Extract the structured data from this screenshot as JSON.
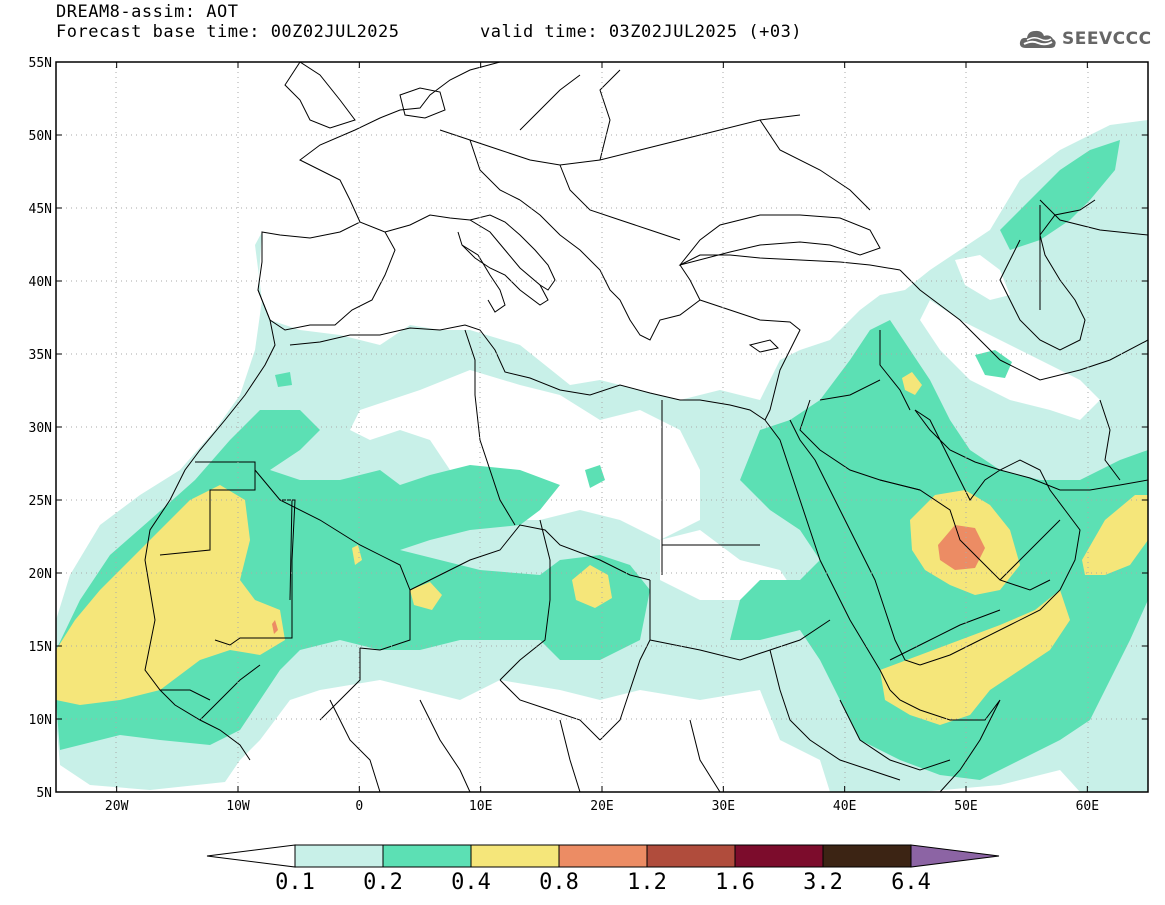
{
  "header": {
    "title": "DREAM8-assim: AOT",
    "base_time": "Forecast base time: 00Z02JUL2025",
    "valid_time": "valid time: 03Z02JUL2025 (+03)",
    "logo_text": "SEEVCCC"
  },
  "map": {
    "lon_range": [
      -25,
      65
    ],
    "lat_range": [
      5,
      55
    ],
    "lat_labels": [
      "55N",
      "50N",
      "45N",
      "40N",
      "35N",
      "30N",
      "25N",
      "20N",
      "15N",
      "10N",
      "5N"
    ],
    "lon_labels": [
      "20W",
      "10W",
      "0",
      "10E",
      "20E",
      "30E",
      "40E",
      "50E",
      "60E"
    ]
  },
  "colorbar": {
    "labels": [
      "0.1",
      "0.2",
      "0.4",
      "0.8",
      "1.2",
      "1.6",
      "3.2",
      "6.4"
    ],
    "colors": [
      "#c8f0e8",
      "#5ce0b4",
      "#f5e67a",
      "#ec8c64",
      "#b04c3c",
      "#7c0c2c",
      "#3c2414",
      "#8c64a4"
    ],
    "under_color": "#ffffff"
  },
  "field_colors": {
    "c01": "#c8f0e8",
    "c02": "#5ce0b4",
    "c04": "#f5e67a",
    "c08": "#ec8c64"
  }
}
